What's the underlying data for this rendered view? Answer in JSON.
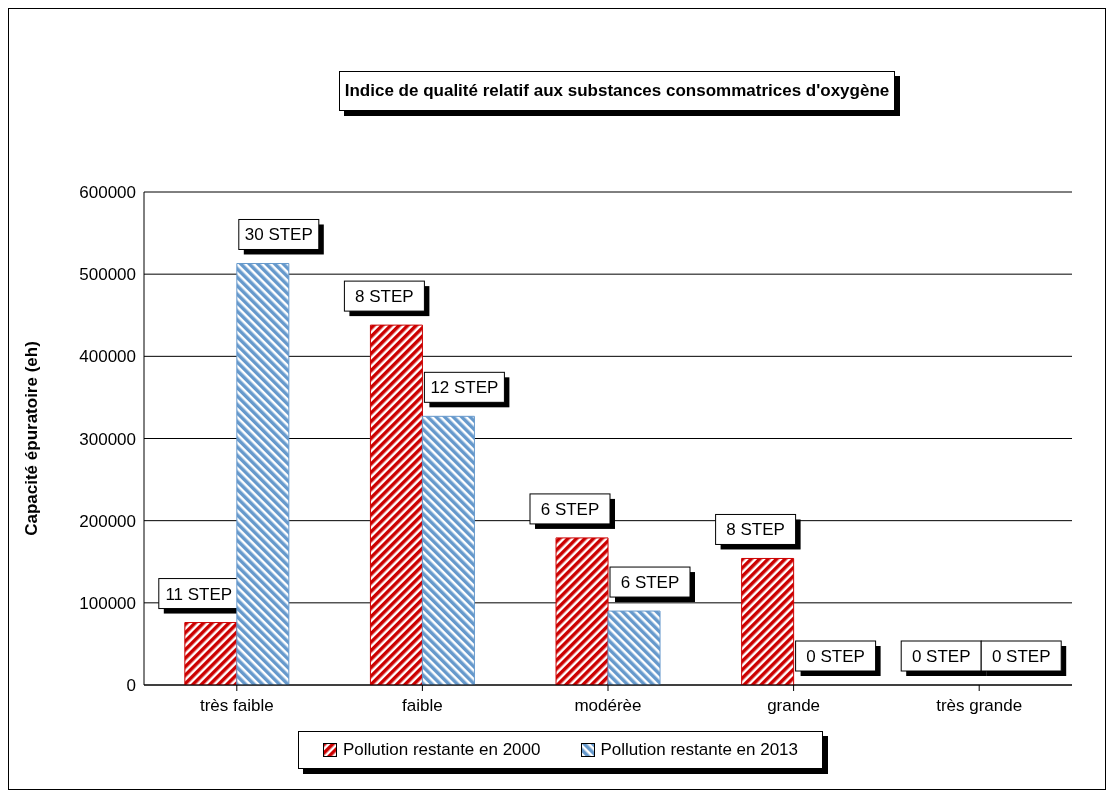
{
  "chart_data": {
    "type": "bar",
    "title": "Indice de qualité relatif aux substances consommatrices d'oxygène",
    "ylabel": "Capacité épuratoire (eh)",
    "categories": [
      "très faible",
      "faible",
      "modérèe",
      "grande",
      "très grande"
    ],
    "series": [
      {
        "name": "Pollution restante en 2000",
        "color": "#cc0000",
        "values": [
          76000,
          438000,
          179000,
          154000,
          0
        ]
      },
      {
        "name": "Pollution restante en 2013",
        "color": "#6699cc",
        "values": [
          513000,
          327000,
          90000,
          0,
          0
        ]
      }
    ],
    "annotations": [
      {
        "text": "11 STEP",
        "x": "très faible",
        "y": 76000
      },
      {
        "text": "30 STEP",
        "x": "très faible",
        "y": 513000
      },
      {
        "text": "8 STEP",
        "x": "faible",
        "y": 438000
      },
      {
        "text": "12 STEP",
        "x": "faible",
        "y": 327000
      },
      {
        "text": "6 STEP",
        "x": "modérèe",
        "y": 179000
      },
      {
        "text": "6 STEP",
        "x": "modérèe",
        "y": 90000
      },
      {
        "text": "8 STEP",
        "x": "grande",
        "y": 154000
      },
      {
        "text": "0 STEP",
        "x": "grande",
        "y": 0
      },
      {
        "text": "0 STEP",
        "x": "très grande",
        "y": 0
      },
      {
        "text": "0 STEP",
        "x": "très grande",
        "y": 0
      }
    ],
    "ylim": [
      0,
      600000
    ],
    "yticks": [
      0,
      100000,
      200000,
      300000,
      400000,
      500000,
      600000
    ],
    "grid": "y",
    "legend": "bottom"
  }
}
